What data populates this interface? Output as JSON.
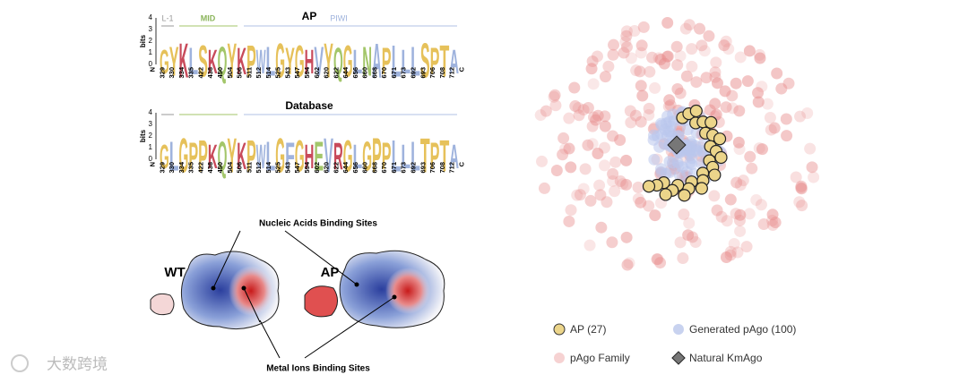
{
  "logo_top": {
    "regions": [
      "L-1",
      "MID",
      "AP",
      "PIWI"
    ],
    "y_label": "bits",
    "y_ticks": [
      "0",
      "1",
      "2",
      "3",
      "4"
    ],
    "letters": [
      "G",
      "Y",
      "K",
      "L",
      "S",
      "K",
      "Q",
      "Y",
      "K",
      "P",
      "W",
      "L",
      "G",
      "Y",
      "G",
      "H",
      "V",
      "Y",
      "Q",
      "G",
      "L",
      "N",
      "A",
      "P",
      "L",
      "L",
      "L",
      "S",
      "P",
      "T",
      "A"
    ],
    "positions": [
      "N",
      "329",
      "330",
      "334",
      "335",
      "422",
      "438",
      "450",
      "504",
      "506",
      "511",
      "512",
      "514",
      "525",
      "543",
      "547",
      "594",
      "602",
      "620",
      "622",
      "644",
      "656",
      "660",
      "668",
      "670",
      "671",
      "673",
      "692",
      "693",
      "706",
      "708",
      "712",
      "C"
    ]
  },
  "logo_bottom": {
    "title": "Database",
    "y_label": "bits",
    "y_ticks": [
      "0",
      "1",
      "2",
      "3",
      "4"
    ],
    "letters": [
      "G",
      "L",
      "G",
      "P",
      "P",
      "K",
      "Q",
      "Y",
      "K",
      "P",
      "W",
      "L",
      "G",
      "F",
      "G",
      "H",
      "E",
      "V",
      "R",
      "G",
      "L",
      "G",
      "P",
      "P",
      "L",
      "L",
      "L",
      "T",
      "P",
      "T",
      "A"
    ],
    "positions": [
      "N",
      "329",
      "330",
      "334",
      "335",
      "422",
      "438",
      "450",
      "504",
      "506",
      "511",
      "512",
      "514",
      "525",
      "543",
      "547",
      "594",
      "602",
      "620",
      "622",
      "644",
      "656",
      "660",
      "668",
      "670",
      "671",
      "673",
      "692",
      "693",
      "706",
      "708",
      "712",
      "C"
    ]
  },
  "structures": {
    "labels": [
      "WT",
      "AP"
    ],
    "top_note": "Nucleic Acids Binding Sites",
    "bottom_note": "Metal Ions Binding Sites"
  },
  "legend": [
    "AP (27)",
    "Generated pAgo (100)",
    "pAgo Family",
    "Natural KmAgo"
  ],
  "watermark": "大数跨境"
}
